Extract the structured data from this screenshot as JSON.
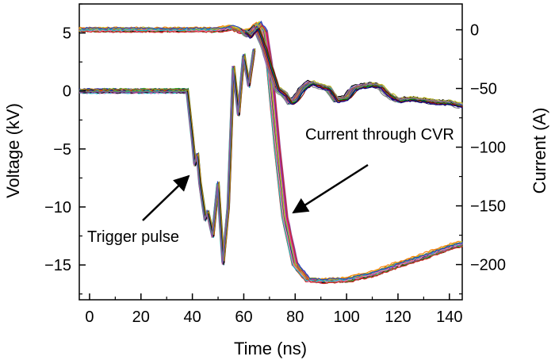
{
  "chart_data": {
    "type": "line",
    "title": "",
    "xlabel": "Time (ns)",
    "ylabel_left": "Voltage (kV)",
    "ylabel_right": "Current (A)",
    "xlim": [
      -4,
      145
    ],
    "ylim_left": [
      -18,
      7.5
    ],
    "ylim_right": [
      -230,
      22
    ],
    "x_ticks": [
      0,
      20,
      40,
      60,
      80,
      100,
      120,
      140
    ],
    "y_ticks_left": [
      5,
      0,
      -5,
      -10,
      -15
    ],
    "y_ticks_right": [
      0,
      -50,
      -100,
      -150,
      -200
    ],
    "grid": false,
    "legend": "none",
    "series": [
      {
        "axis": "left",
        "points": [
          [
            -4,
            0
          ],
          [
            38,
            0
          ],
          [
            40,
            -4
          ],
          [
            41,
            -6.3
          ],
          [
            42,
            -5.5
          ],
          [
            43,
            -8
          ],
          [
            45,
            -11
          ],
          [
            46,
            -10.5
          ],
          [
            48,
            -12.5
          ],
          [
            50,
            -8
          ],
          [
            52,
            -14.8
          ],
          [
            54,
            -10
          ],
          [
            56,
            2
          ],
          [
            58,
            -2
          ],
          [
            60,
            3
          ],
          [
            62,
            0.5
          ],
          [
            64,
            3.5
          ]
        ]
      },
      {
        "axis": "right",
        "points": [
          [
            -4,
            0
          ],
          [
            40,
            0
          ],
          [
            50,
            0
          ],
          [
            55,
            2
          ],
          [
            60,
            -2
          ],
          [
            63,
            -1
          ],
          [
            66,
            5
          ],
          [
            68,
            -1
          ],
          [
            70,
            -30
          ],
          [
            73,
            -100
          ],
          [
            76,
            -160
          ],
          [
            80,
            -200
          ],
          [
            85,
            -213
          ],
          [
            90,
            -214
          ],
          [
            100,
            -213
          ],
          [
            110,
            -208
          ],
          [
            120,
            -200
          ],
          [
            130,
            -193
          ],
          [
            140,
            -185
          ],
          [
            145,
            -182
          ]
        ]
      },
      {
        "axis": "right",
        "points": [
          [
            60,
            -1
          ],
          [
            62,
            -5
          ],
          [
            65,
            2
          ],
          [
            68,
            -15
          ],
          [
            70,
            -30
          ],
          [
            73,
            -50
          ],
          [
            76,
            -55
          ],
          [
            78,
            -62
          ],
          [
            80,
            -60
          ],
          [
            83,
            -50
          ],
          [
            86,
            -45
          ],
          [
            90,
            -48
          ],
          [
            93,
            -50
          ],
          [
            96,
            -60
          ],
          [
            100,
            -58
          ],
          [
            103,
            -50
          ],
          [
            106,
            -48
          ],
          [
            110,
            -47
          ],
          [
            113,
            -48
          ],
          [
            116,
            -55
          ],
          [
            120,
            -60
          ],
          [
            125,
            -59
          ],
          [
            130,
            -60
          ],
          [
            135,
            -62
          ],
          [
            140,
            -62
          ],
          [
            145,
            -65
          ]
        ]
      }
    ],
    "annotations": [
      {
        "text": "Trigger pulse",
        "arrow_to": [
          41,
          -6
        ]
      },
      {
        "text": "Current through CVR",
        "arrow_to": [
          76,
          -160
        ]
      }
    ]
  }
}
